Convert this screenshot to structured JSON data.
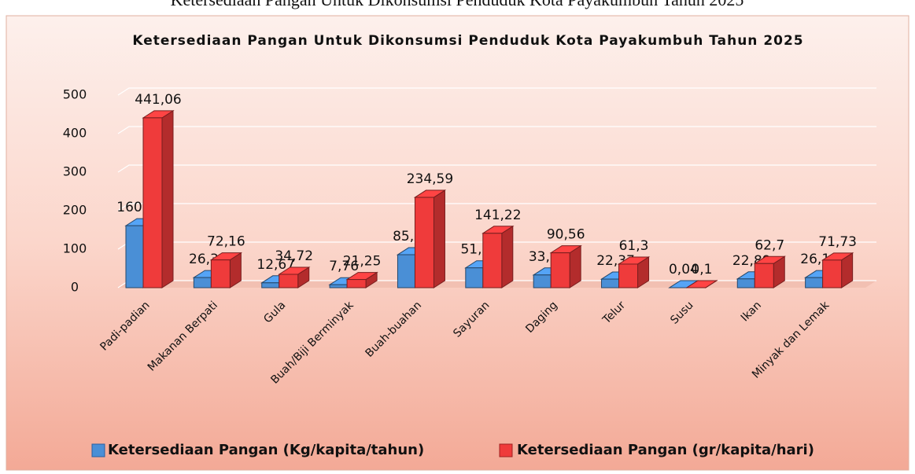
{
  "caption": "Ketersediaan Pangan Untuk Dikonsumsi Penduduk Kota Payakumbuh Tahun 2025",
  "chart_data": {
    "type": "bar3d",
    "title": "Ketersediaan Pangan Untuk Dikonsumsi Penduduk Kota Payakumbuh Tahun  2025",
    "categories": [
      "Padi-padian",
      "Makanan Berpati",
      "Gula",
      "Buah/Biji Berminyak",
      "Buah-buahan",
      "Sayuran",
      "Daging",
      "Telur",
      "Susu",
      "Ikan",
      "Minyak dan Lemak"
    ],
    "series": [
      {
        "name": "Ketersediaan Pangan  (Kg/kapita/tahun)",
        "color": "#4a8fd6",
        "values": [
          160.99,
          26.34,
          12.67,
          7.76,
          85.63,
          51.55,
          33.05,
          22.37,
          0.04,
          22.89,
          26.18
        ],
        "value_labels": [
          "160,99",
          "26,34",
          "12,67",
          "7,76",
          "85,63",
          "51,55",
          "33,05",
          "22,37",
          "0,04",
          "22,89",
          "26,18"
        ]
      },
      {
        "name": "Ketersediaan Pangan  (gr/kapita/hari)",
        "color": "#ef3b3b",
        "values": [
          441.06,
          72.16,
          34.72,
          21.25,
          234.59,
          141.22,
          90.56,
          61.3,
          0.1,
          62.7,
          71.73
        ],
        "value_labels": [
          "441,06",
          "72,16",
          "34,72",
          "21,25",
          "234,59",
          "141,22",
          "90,56",
          "61,3",
          "0,1",
          "62,7",
          "71,73"
        ]
      }
    ],
    "ylim": [
      0,
      500
    ],
    "yticks": [
      0,
      100,
      200,
      300,
      400,
      500
    ],
    "grid": true
  }
}
